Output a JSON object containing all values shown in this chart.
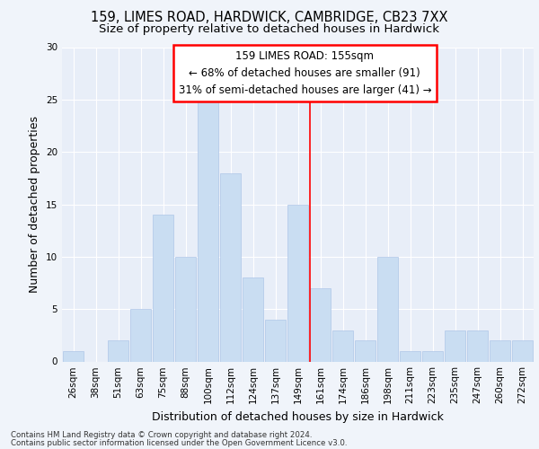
{
  "title_line1": "159, LIMES ROAD, HARDWICK, CAMBRIDGE, CB23 7XX",
  "title_line2": "Size of property relative to detached houses in Hardwick",
  "xlabel": "Distribution of detached houses by size in Hardwick",
  "ylabel": "Number of detached properties",
  "categories": [
    "26sqm",
    "38sqm",
    "51sqm",
    "63sqm",
    "75sqm",
    "88sqm",
    "100sqm",
    "112sqm",
    "124sqm",
    "137sqm",
    "149sqm",
    "161sqm",
    "174sqm",
    "186sqm",
    "198sqm",
    "211sqm",
    "223sqm",
    "235sqm",
    "247sqm",
    "260sqm",
    "272sqm"
  ],
  "values": [
    1,
    0,
    2,
    5,
    14,
    10,
    25,
    18,
    8,
    4,
    15,
    7,
    3,
    2,
    10,
    1,
    1,
    3,
    3,
    2,
    2
  ],
  "bar_color": "#c9ddf2",
  "bar_edgecolor": "#aec6e8",
  "red_line_x": 10.55,
  "annotation_box_text": "159 LIMES ROAD: 155sqm\n← 68% of detached houses are smaller (91)\n31% of semi-detached houses are larger (41) →",
  "ylim": [
    0,
    30
  ],
  "yticks": [
    0,
    5,
    10,
    15,
    20,
    25,
    30
  ],
  "plot_bg_color": "#e8eef8",
  "fig_bg_color": "#f0f4fa",
  "grid_color": "#ffffff",
  "footer_line1": "Contains HM Land Registry data © Crown copyright and database right 2024.",
  "footer_line2": "Contains public sector information licensed under the Open Government Licence v3.0.",
  "title_fontsize": 10.5,
  "subtitle_fontsize": 9.5,
  "ylabel_fontsize": 9,
  "xlabel_fontsize": 9,
  "tick_fontsize": 7.5,
  "annotation_fontsize": 8.5,
  "footer_fontsize": 6.2
}
